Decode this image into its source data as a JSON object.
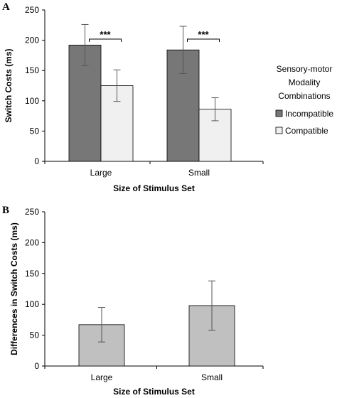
{
  "chart_data": [
    {
      "panel": "A",
      "type": "bar",
      "categories": [
        "Large",
        "Small"
      ],
      "xlabel": "Size of Stimulus Set",
      "ylabel": "Switch Costs (ms)",
      "ylim": [
        0,
        250
      ],
      "yticks": [
        0,
        50,
        100,
        150,
        200,
        250
      ],
      "legend_title": [
        "Sensory-motor",
        "Modality",
        "Combinations"
      ],
      "legend_position": "right",
      "series": [
        {
          "name": "Incompatible",
          "values": [
            192,
            184
          ],
          "error_low": [
            158,
            145
          ],
          "error_high": [
            226,
            223
          ],
          "color": "#777777"
        },
        {
          "name": "Compatible",
          "values": [
            125,
            86
          ],
          "error_low": [
            99,
            67
          ],
          "error_high": [
            151,
            105
          ],
          "color": "#f0f0f0"
        }
      ],
      "annotations": [
        "***",
        "***"
      ]
    },
    {
      "panel": "B",
      "type": "bar",
      "categories": [
        "Large",
        "Small"
      ],
      "xlabel": "Size of Stimulus Set",
      "ylabel": "Differences in Switch Costs (ms)",
      "ylim": [
        0,
        250
      ],
      "yticks": [
        0,
        50,
        100,
        150,
        200,
        250
      ],
      "series": [
        {
          "values": [
            67,
            98
          ],
          "error_low": [
            39,
            58
          ],
          "error_high": [
            95,
            138
          ],
          "color": "#c0c0c0"
        }
      ]
    }
  ]
}
